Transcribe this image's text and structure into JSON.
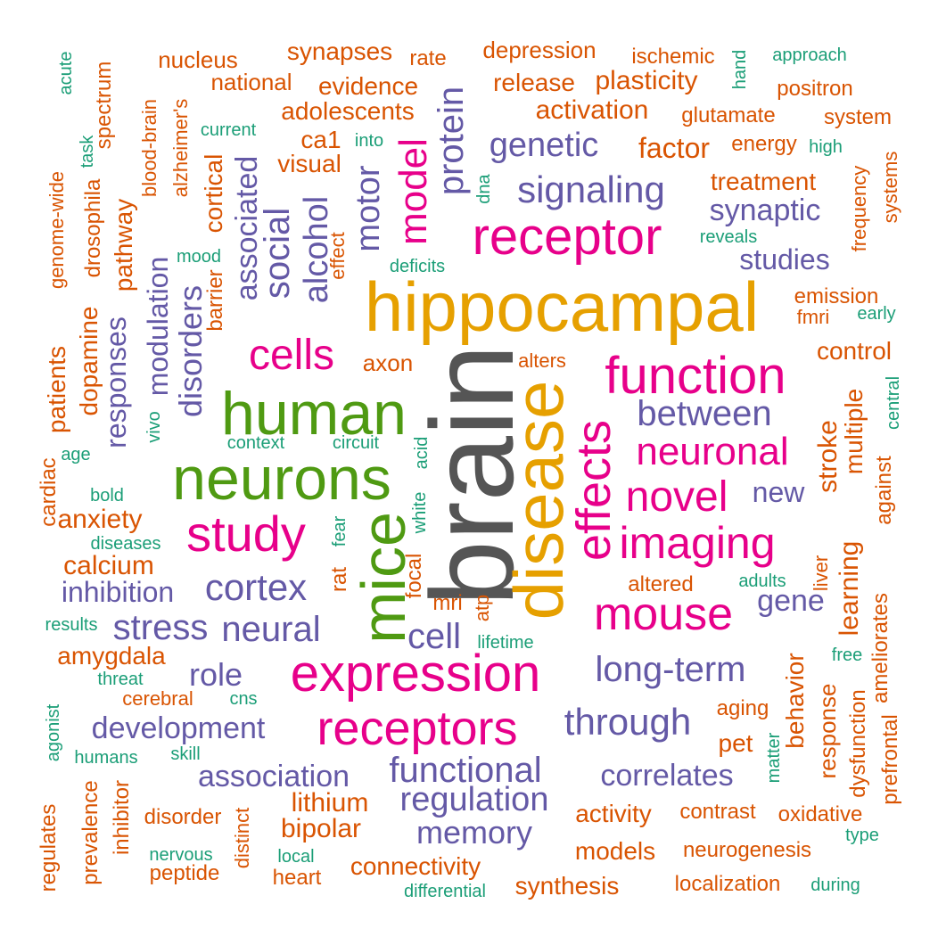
{
  "palette": {
    "gray": "#555555",
    "orange": "#e6a000",
    "magenta": "#e7008a",
    "green": "#4f9a12",
    "purple": "#6459a6",
    "burnt": "#d95402",
    "teal": "#1b9e77"
  },
  "words": [
    {
      "text": "brain",
      "color": "gray"
    },
    {
      "text": "hippocampal",
      "color": "orange"
    },
    {
      "text": "disease",
      "color": "orange"
    },
    {
      "text": "human",
      "color": "green"
    },
    {
      "text": "neurons",
      "color": "green"
    },
    {
      "text": "mice",
      "color": "green"
    },
    {
      "text": "receptor",
      "color": "magenta"
    },
    {
      "text": "function",
      "color": "magenta"
    },
    {
      "text": "effects",
      "color": "magenta"
    },
    {
      "text": "expression",
      "color": "magenta"
    },
    {
      "text": "receptors",
      "color": "magenta"
    },
    {
      "text": "mouse",
      "color": "magenta"
    },
    {
      "text": "imaging",
      "color": "magenta"
    },
    {
      "text": "study",
      "color": "magenta"
    },
    {
      "text": "novel",
      "color": "magenta"
    },
    {
      "text": "neuronal",
      "color": "magenta"
    },
    {
      "text": "cells",
      "color": "magenta"
    },
    {
      "text": "model",
      "color": "magenta"
    },
    {
      "text": "long-term",
      "color": "purple"
    },
    {
      "text": "through",
      "color": "purple"
    },
    {
      "text": "functional",
      "color": "purple"
    },
    {
      "text": "regulation",
      "color": "purple"
    },
    {
      "text": "between",
      "color": "purple"
    },
    {
      "text": "signaling",
      "color": "purple"
    },
    {
      "text": "genetic",
      "color": "purple"
    },
    {
      "text": "synaptic",
      "color": "purple"
    },
    {
      "text": "cortex",
      "color": "purple"
    },
    {
      "text": "neural",
      "color": "purple"
    },
    {
      "text": "stress",
      "color": "purple"
    },
    {
      "text": "cell",
      "color": "purple"
    },
    {
      "text": "development",
      "color": "purple"
    },
    {
      "text": "association",
      "color": "purple"
    },
    {
      "text": "correlates",
      "color": "purple"
    },
    {
      "text": "memory",
      "color": "purple"
    },
    {
      "text": "inhibition",
      "color": "purple"
    },
    {
      "text": "role",
      "color": "purple"
    },
    {
      "text": "gene",
      "color": "purple"
    },
    {
      "text": "new",
      "color": "purple"
    },
    {
      "text": "studies",
      "color": "purple"
    },
    {
      "text": "social",
      "color": "purple"
    },
    {
      "text": "alcohol",
      "color": "purple"
    },
    {
      "text": "motor",
      "color": "purple"
    },
    {
      "text": "protein",
      "color": "purple"
    },
    {
      "text": "associated",
      "color": "purple"
    },
    {
      "text": "disorders",
      "color": "purple"
    },
    {
      "text": "modulation",
      "color": "purple"
    },
    {
      "text": "responses",
      "color": "purple"
    },
    {
      "text": "synapses",
      "color": "burnt"
    },
    {
      "text": "rate",
      "color": "burnt"
    },
    {
      "text": "depression",
      "color": "burnt"
    },
    {
      "text": "ischemic",
      "color": "burnt"
    },
    {
      "text": "nucleus",
      "color": "burnt"
    },
    {
      "text": "national",
      "color": "burnt"
    },
    {
      "text": "evidence",
      "color": "burnt"
    },
    {
      "text": "release",
      "color": "burnt"
    },
    {
      "text": "plasticity",
      "color": "burnt"
    },
    {
      "text": "positron",
      "color": "burnt"
    },
    {
      "text": "adolescents",
      "color": "burnt"
    },
    {
      "text": "activation",
      "color": "burnt"
    },
    {
      "text": "glutamate",
      "color": "burnt"
    },
    {
      "text": "system",
      "color": "burnt"
    },
    {
      "text": "ca1",
      "color": "burnt"
    },
    {
      "text": "factor",
      "color": "burnt"
    },
    {
      "text": "energy",
      "color": "burnt"
    },
    {
      "text": "visual",
      "color": "burnt"
    },
    {
      "text": "treatment",
      "color": "burnt"
    },
    {
      "text": "emission",
      "color": "burnt"
    },
    {
      "text": "fmri",
      "color": "burnt"
    },
    {
      "text": "axon",
      "color": "burnt"
    },
    {
      "text": "alters",
      "color": "burnt"
    },
    {
      "text": "control",
      "color": "burnt"
    },
    {
      "text": "anxiety",
      "color": "burnt"
    },
    {
      "text": "calcium",
      "color": "burnt"
    },
    {
      "text": "amygdala",
      "color": "burnt"
    },
    {
      "text": "cerebral",
      "color": "burnt"
    },
    {
      "text": "altered",
      "color": "burnt"
    },
    {
      "text": "aging",
      "color": "burnt"
    },
    {
      "text": "pet",
      "color": "burnt"
    },
    {
      "text": "lithium",
      "color": "burnt"
    },
    {
      "text": "bipolar",
      "color": "burnt"
    },
    {
      "text": "activity",
      "color": "burnt"
    },
    {
      "text": "contrast",
      "color": "burnt"
    },
    {
      "text": "oxidative",
      "color": "burnt"
    },
    {
      "text": "disorder",
      "color": "burnt"
    },
    {
      "text": "models",
      "color": "burnt"
    },
    {
      "text": "neurogenesis",
      "color": "burnt"
    },
    {
      "text": "connectivity",
      "color": "burnt"
    },
    {
      "text": "peptide",
      "color": "burnt"
    },
    {
      "text": "heart",
      "color": "burnt"
    },
    {
      "text": "synthesis",
      "color": "burnt"
    },
    {
      "text": "localization",
      "color": "burnt"
    },
    {
      "text": "mri",
      "color": "burnt"
    },
    {
      "text": "spectrum",
      "color": "burnt"
    },
    {
      "text": "alzheimer's",
      "color": "burnt"
    },
    {
      "text": "cortical",
      "color": "burnt"
    },
    {
      "text": "drosophila",
      "color": "burnt"
    },
    {
      "text": "pathway",
      "color": "burnt"
    },
    {
      "text": "genome-wide",
      "color": "burnt"
    },
    {
      "text": "dopamine",
      "color": "burnt"
    },
    {
      "text": "patients",
      "color": "burnt"
    },
    {
      "text": "cardiac",
      "color": "burnt"
    },
    {
      "text": "barrier",
      "color": "burnt"
    },
    {
      "text": "effect",
      "color": "burnt"
    },
    {
      "text": "blood-brain",
      "color": "burnt"
    },
    {
      "text": "rat",
      "color": "burnt"
    },
    {
      "text": "focal",
      "color": "burnt"
    },
    {
      "text": "atp",
      "color": "burnt"
    },
    {
      "text": "stroke",
      "color": "burnt"
    },
    {
      "text": "multiple",
      "color": "burnt"
    },
    {
      "text": "learning",
      "color": "burnt"
    },
    {
      "text": "behavior",
      "color": "burnt"
    },
    {
      "text": "response",
      "color": "burnt"
    },
    {
      "text": "dysfunction",
      "color": "burnt"
    },
    {
      "text": "prefrontal",
      "color": "burnt"
    },
    {
      "text": "ameliorates",
      "color": "burnt"
    },
    {
      "text": "liver",
      "color": "burnt"
    },
    {
      "text": "against",
      "color": "burnt"
    },
    {
      "text": "frequency",
      "color": "burnt"
    },
    {
      "text": "systems",
      "color": "burnt"
    },
    {
      "text": "regulates",
      "color": "burnt"
    },
    {
      "text": "prevalence",
      "color": "burnt"
    },
    {
      "text": "inhibitor",
      "color": "burnt"
    },
    {
      "text": "distinct",
      "color": "burnt"
    },
    {
      "text": "approach",
      "color": "teal"
    },
    {
      "text": "current",
      "color": "teal"
    },
    {
      "text": "into",
      "color": "teal"
    },
    {
      "text": "high",
      "color": "teal"
    },
    {
      "text": "reveals",
      "color": "teal"
    },
    {
      "text": "mood",
      "color": "teal"
    },
    {
      "text": "deficits",
      "color": "teal"
    },
    {
      "text": "early",
      "color": "teal"
    },
    {
      "text": "context",
      "color": "teal"
    },
    {
      "text": "circuit",
      "color": "teal"
    },
    {
      "text": "age",
      "color": "teal"
    },
    {
      "text": "bold",
      "color": "teal"
    },
    {
      "text": "diseases",
      "color": "teal"
    },
    {
      "text": "results",
      "color": "teal"
    },
    {
      "text": "threat",
      "color": "teal"
    },
    {
      "text": "cns",
      "color": "teal"
    },
    {
      "text": "humans",
      "color": "teal"
    },
    {
      "text": "skill",
      "color": "teal"
    },
    {
      "text": "nervous",
      "color": "teal"
    },
    {
      "text": "local",
      "color": "teal"
    },
    {
      "text": "differential",
      "color": "teal"
    },
    {
      "text": "during",
      "color": "teal"
    },
    {
      "text": "type",
      "color": "teal"
    },
    {
      "text": "adults",
      "color": "teal"
    },
    {
      "text": "free",
      "color": "teal"
    },
    {
      "text": "lifetime",
      "color": "teal"
    },
    {
      "text": "acute",
      "color": "teal"
    },
    {
      "text": "task",
      "color": "teal"
    },
    {
      "text": "hand",
      "color": "teal"
    },
    {
      "text": "dna",
      "color": "teal"
    },
    {
      "text": "vivo",
      "color": "teal"
    },
    {
      "text": "fear",
      "color": "teal"
    },
    {
      "text": "white",
      "color": "teal"
    },
    {
      "text": "acid",
      "color": "teal"
    },
    {
      "text": "central",
      "color": "teal"
    },
    {
      "text": "matter",
      "color": "teal"
    },
    {
      "text": "agonist",
      "color": "teal"
    }
  ]
}
